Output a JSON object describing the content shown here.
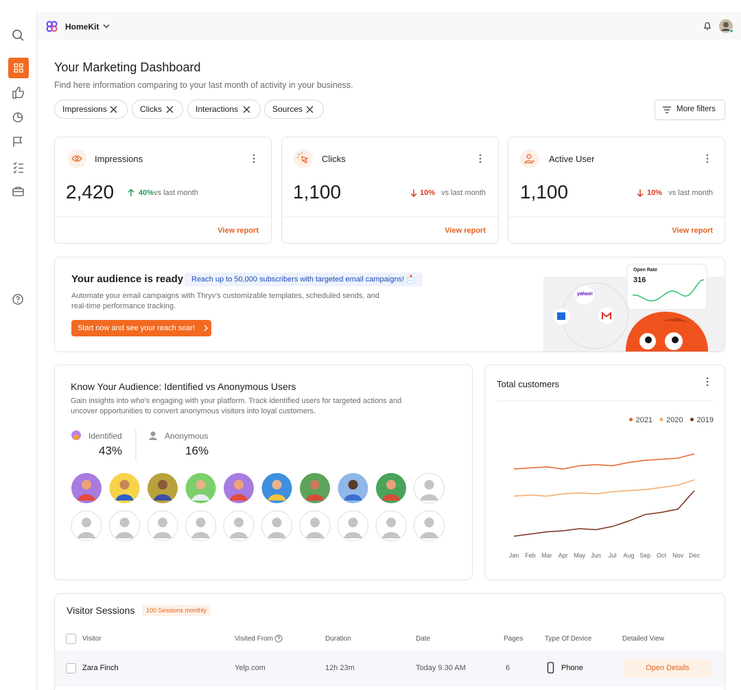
{
  "header": {
    "brand": "HomeKit"
  },
  "page": {
    "title": "Your Marketing Dashboard",
    "subtitle": "Find here information comparing to your last month of activity in your business."
  },
  "filters": [
    "Impressions",
    "Clicks",
    "Interactions",
    "Sources"
  ],
  "more_filters": "More filters",
  "stats": [
    {
      "label": "Impressions",
      "value": "2,420",
      "change": "40%",
      "compare": "vs last month",
      "link": "View report"
    },
    {
      "label": "Clicks",
      "value": "1,100",
      "change": "10%",
      "compare": "vs last month",
      "link": "View report"
    },
    {
      "label": "Active User",
      "value": "1,100",
      "change": "10%",
      "compare": "vs last month",
      "link": "View report"
    }
  ],
  "banner": {
    "title": "Your audience is ready",
    "badge": "Reach up to 50,000 subscribers with targeted email campaigns! 📩",
    "text": "Automate your email campaigns with Thryv's customizable templates, scheduled sends, and real-time performance tracking.",
    "button": "Start now and see your reach soar!",
    "card_title": "Open Rate",
    "card_value": "316",
    "logo": "yahoo!"
  },
  "audience": {
    "title": "Know Your Audience: Identified vs Anonymous Users",
    "text": "Gain insights into who's engaging with your platform. Track identified users for targeted actions and uncover opportunities to convert anonymous visitors into loyal customers.",
    "identified_label": "Identified",
    "identified_value": "43%",
    "anonymous_label": "Anonymous",
    "anonymous_value": "16%"
  },
  "chart_data": {
    "type": "line",
    "title": "Total customers",
    "categories": [
      "Jan",
      "Feb",
      "Mar",
      "Apr",
      "May",
      "Jun",
      "Jul",
      "Aug",
      "Sep",
      "Oct",
      "Nov",
      "Dec"
    ],
    "series": [
      {
        "name": "2021",
        "color": "#e4622a",
        "values": [
          70,
          71,
          72,
          70,
          73,
          74,
          73,
          76,
          78,
          79,
          80,
          84
        ]
      },
      {
        "name": "2020",
        "color": "#f3a968",
        "values": [
          45,
          46,
          45,
          47,
          48,
          47,
          49,
          50,
          51,
          53,
          55,
          60
        ]
      },
      {
        "name": "2019",
        "color": "#7a2e1a",
        "values": [
          8,
          10,
          12,
          13,
          15,
          14,
          17,
          22,
          28,
          30,
          33,
          50
        ]
      }
    ]
  },
  "sessions": {
    "title": "Visitor Sessions",
    "badge": "100 Sessions monthly",
    "columns": [
      "Visitor",
      "Visited From",
      "Duration",
      "Date",
      "Pages",
      "Type Of Device",
      "Detailed View"
    ],
    "rows": [
      [
        "Zara Finch",
        "Yelp.com",
        "12h 23m",
        "Today 9.30 AM",
        "6",
        "Phone",
        "Open Details"
      ]
    ]
  }
}
